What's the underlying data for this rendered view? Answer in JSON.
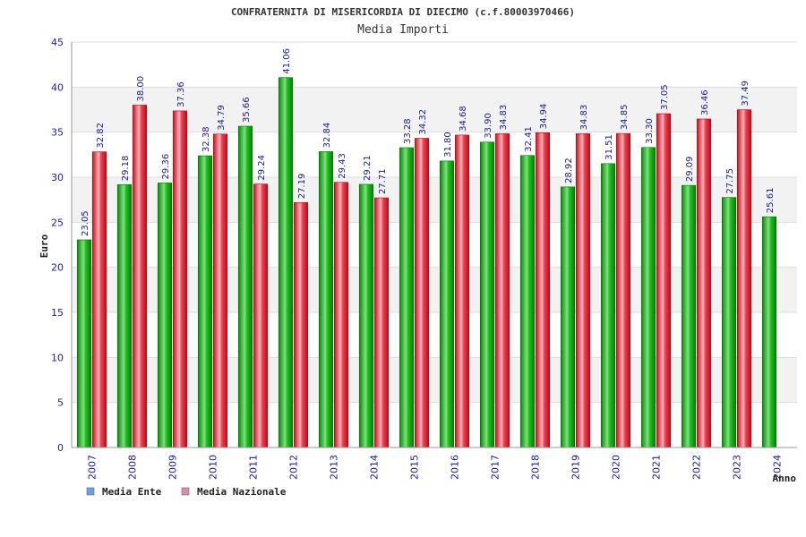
{
  "chart_data": {
    "type": "bar",
    "title": "CONFRATERNITA DI MISERICORDIA DI DIECIMO (c.f.80003970466)",
    "subtitle": "Media Importi",
    "ylabel": "Euro",
    "xlabel": "Anno",
    "ylim": [
      0,
      45
    ],
    "yticks": [
      "0",
      "5",
      "10",
      "15",
      "20",
      "25",
      "30",
      "35",
      "40",
      "45"
    ],
    "categories": [
      "2007",
      "2008",
      "2009",
      "2010",
      "2011",
      "2012",
      "2013",
      "2014",
      "2015",
      "2016",
      "2017",
      "2018",
      "2019",
      "2020",
      "2021",
      "2022",
      "2023",
      "2024"
    ],
    "series": [
      {
        "name": "Media Ente",
        "color": "#10b010",
        "legend_color": "#66a3e0",
        "values": [
          23.05,
          29.18,
          29.36,
          32.38,
          35.66,
          41.06,
          32.84,
          29.21,
          33.28,
          31.8,
          33.9,
          32.41,
          28.92,
          31.51,
          33.3,
          29.09,
          27.75,
          25.61
        ],
        "labels": [
          "23.05",
          "29.18",
          "29.36",
          "32.38",
          "35.66",
          "41.06",
          "32.84",
          "29.21",
          "33.28",
          "31.80",
          "33.90",
          "32.41",
          "28.92",
          "31.51",
          "33.30",
          "29.09",
          "27.75",
          "25.61"
        ]
      },
      {
        "name": "Media Nazionale",
        "color": "#e8283c",
        "legend_color": "#d98cb3",
        "values": [
          32.82,
          38.0,
          37.36,
          34.79,
          29.24,
          27.19,
          29.43,
          27.71,
          34.32,
          34.68,
          34.83,
          34.94,
          34.83,
          34.85,
          37.05,
          36.46,
          37.49,
          null
        ],
        "labels": [
          "32.82",
          "38.00",
          "37.36",
          "34.79",
          "29.24",
          "27.19",
          "29.43",
          "27.71",
          "34.32",
          "34.68",
          "34.83",
          "34.94",
          "34.83",
          "34.85",
          "37.05",
          "36.46",
          "37.49",
          null
        ]
      }
    ],
    "legend_position": "bottom-left",
    "grid": true
  }
}
